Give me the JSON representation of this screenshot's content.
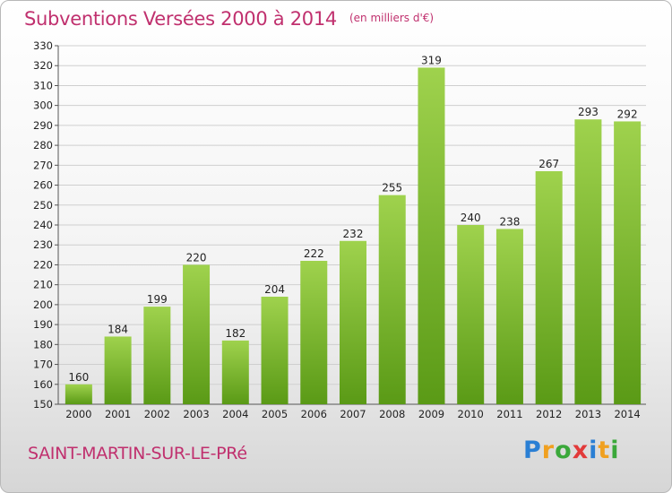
{
  "title": "Subventions Versées 2000 à 2014",
  "subtitle": "(en milliers d'€)",
  "commune": "SAINT-MARTIN-SUR-LE-PRé",
  "logo": {
    "letters": [
      {
        "ch": "P",
        "color": "#2a7fd4"
      },
      {
        "ch": "r",
        "color": "#f0a020"
      },
      {
        "ch": "o",
        "color": "#3aa83a"
      },
      {
        "ch": "x",
        "color": "#e23a3a"
      },
      {
        "ch": "i",
        "color": "#2a7fd4"
      },
      {
        "ch": "t",
        "color": "#f0a020"
      },
      {
        "ch": "i",
        "color": "#3aa83a"
      }
    ]
  },
  "colors": {
    "bar_top": "#9fd24d",
    "bar_bottom": "#5a9a16",
    "grid": "#cfcfcf",
    "title": "#c0306e"
  },
  "chart_data": {
    "type": "bar",
    "categories": [
      "2000",
      "2001",
      "2002",
      "2003",
      "2004",
      "2005",
      "2006",
      "2007",
      "2008",
      "2009",
      "2010",
      "2011",
      "2012",
      "2013",
      "2014"
    ],
    "values": [
      160,
      184,
      199,
      220,
      182,
      204,
      222,
      232,
      255,
      319,
      240,
      238,
      267,
      293,
      292
    ],
    "ylim": [
      150,
      330
    ],
    "yticks": [
      150,
      160,
      170,
      180,
      190,
      200,
      210,
      220,
      230,
      240,
      250,
      260,
      270,
      280,
      290,
      300,
      310,
      320,
      330
    ],
    "grid": true
  }
}
